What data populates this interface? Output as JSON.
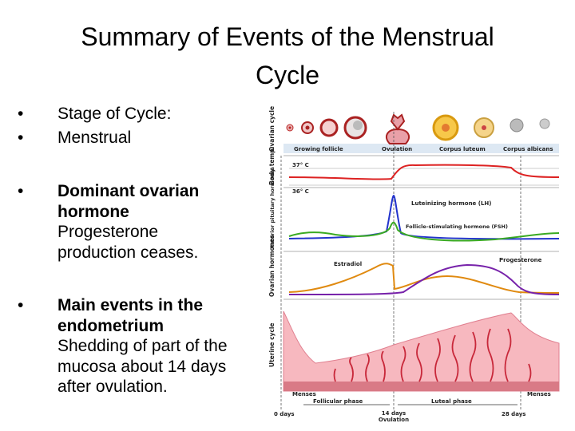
{
  "title": "Summary of Events of the Menstrual Cycle",
  "bullets": [
    {
      "text": "Stage of Cycle:"
    },
    {
      "text": "Menstrual"
    },
    {
      "bold": "Dominant ovarian hormone",
      "text": "Progesterone production ceases."
    },
    {
      "bold": "Main events in the endometrium",
      "text": "Shedding of part of the mucosa about 14 days after ovulation."
    }
  ],
  "diagram": {
    "rows": [
      "Ovarian cycle",
      "Body temp.",
      "Anterior pituitary hormones",
      "Ovarian hormones",
      "Uterine cycle"
    ],
    "ovary_labels": [
      "Growing follicle",
      "Ovulation",
      "Corpus luteum",
      "Corpus albicans"
    ],
    "temps": [
      "37° C",
      "36° C"
    ],
    "hormones": [
      "Luteinizing hormone (LH)",
      "Follicle-stimulating hormone (FSH)",
      "Estradiol",
      "Progesterone"
    ],
    "phases": [
      "Menses",
      "Follicular phase",
      "Luteal phase",
      "Menses"
    ],
    "days": [
      "0 days",
      "14 days",
      "Ovulation",
      "28 days"
    ]
  }
}
